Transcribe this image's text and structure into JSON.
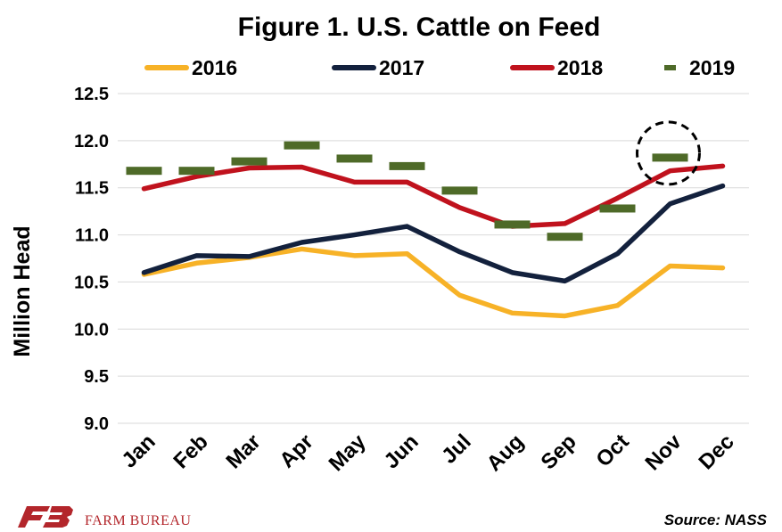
{
  "chart_data": {
    "type": "line",
    "title": "Figure 1. U.S. Cattle on Feed",
    "ylabel": "Million Head",
    "xlabel": "",
    "ylim": [
      9.0,
      12.5
    ],
    "yticks": [
      "12.5",
      "12.0",
      "11.5",
      "11.0",
      "10.5",
      "10.0",
      "9.5",
      "9.0"
    ],
    "ytick_values": [
      12.5,
      12.0,
      11.5,
      11.0,
      10.5,
      10.0,
      9.5,
      9.0
    ],
    "categories": [
      "Jan",
      "Feb",
      "Mar",
      "Apr",
      "May",
      "Jun",
      "Jul",
      "Aug",
      "Sep",
      "Oct",
      "Nov",
      "Dec"
    ],
    "grid": true,
    "legend_position": "top",
    "series": [
      {
        "name": "2016",
        "color": "#f7b227",
        "style": "line",
        "values": [
          10.58,
          10.7,
          10.76,
          10.85,
          10.78,
          10.8,
          10.36,
          10.17,
          10.14,
          10.25,
          10.67,
          10.65
        ]
      },
      {
        "name": "2017",
        "color": "#13213d",
        "style": "line",
        "values": [
          10.6,
          10.78,
          10.77,
          10.92,
          11.0,
          11.09,
          10.82,
          10.6,
          10.51,
          10.8,
          11.33,
          11.52
        ]
      },
      {
        "name": "2018",
        "color": "#c0121d",
        "style": "line",
        "values": [
          11.49,
          11.62,
          11.71,
          11.72,
          11.56,
          11.56,
          11.29,
          11.09,
          11.12,
          11.39,
          11.68,
          11.73
        ]
      },
      {
        "name": "2019",
        "color": "#4e6a28",
        "style": "dash",
        "values": [
          11.68,
          11.68,
          11.78,
          11.95,
          11.81,
          11.73,
          11.47,
          11.11,
          10.98,
          11.28,
          11.82,
          null
        ]
      }
    ],
    "annotation": {
      "type": "dashed-circle",
      "category": "Nov",
      "series": "2019"
    },
    "source": "Source: NASS"
  },
  "brand": {
    "name": "FARM BUREAU",
    "logo_icon": "farm-bureau-fb-logo-icon",
    "color": "#b3262b"
  }
}
